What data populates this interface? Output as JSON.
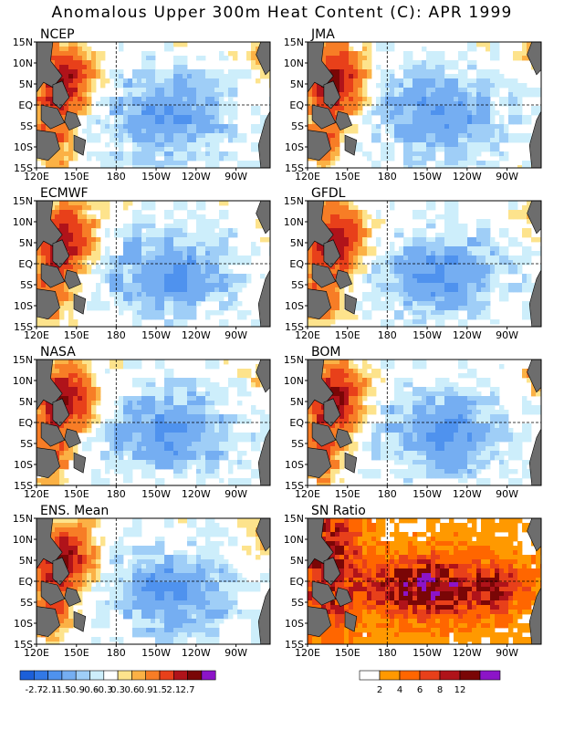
{
  "title": "Anomalous Upper 300m Heat Content (C): APR 1999",
  "panels": [
    {
      "label": "NCEP"
    },
    {
      "label": "JMA"
    },
    {
      "label": "ECMWF"
    },
    {
      "label": "GFDL"
    },
    {
      "label": "NASA"
    },
    {
      "label": "BOM"
    },
    {
      "label": "ENS. Mean"
    },
    {
      "label": "SN Ratio"
    }
  ],
  "lat_ticks": [
    "15N",
    "10N",
    "5N",
    "EQ",
    "5S",
    "10S",
    "15S"
  ],
  "lon_ticks": [
    "120E",
    "150E",
    "180",
    "150W",
    "120W",
    "90W"
  ],
  "colorbar_anomaly": {
    "labels": [
      "-2.7",
      "-2.1",
      "-1.5",
      "-0.9",
      "-0.6",
      "-0.3",
      "0.3",
      "0.6",
      "0.9",
      "1.5",
      "2.1",
      "2.7"
    ],
    "colors": [
      "#1c5fd9",
      "#3278e6",
      "#4f92ee",
      "#75aef2",
      "#9fcef7",
      "#cdeefb",
      "#ffffff",
      "#fde38c",
      "#fbb145",
      "#f77d26",
      "#e8401a",
      "#b0131a",
      "#7a0606",
      "#8c14c8"
    ]
  },
  "colorbar_snratio": {
    "labels": [
      "2",
      "4",
      "6",
      "8",
      "12"
    ],
    "colors": [
      "#ffffff",
      "#ff9900",
      "#ff6600",
      "#e8401a",
      "#b0131a",
      "#7a0606",
      "#8c14c8"
    ]
  },
  "land_color": "#6d6d6d"
}
